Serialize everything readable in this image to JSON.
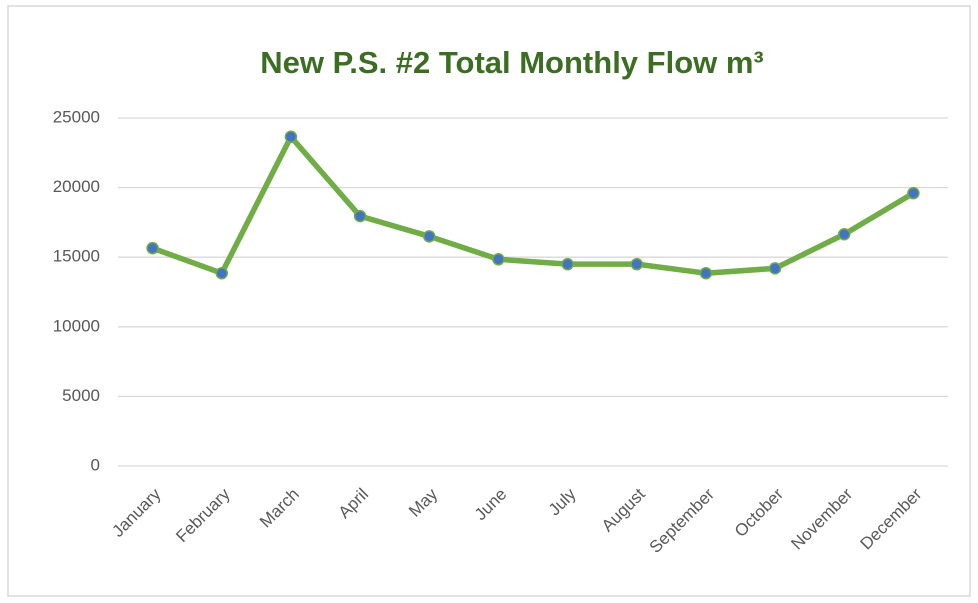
{
  "chart_data": {
    "type": "line",
    "title": "New P.S. #2 Total Monthly Flow m³",
    "categories": [
      "January",
      "February",
      "March",
      "April",
      "May",
      "June",
      "July",
      "August",
      "September",
      "October",
      "November",
      "December"
    ],
    "values": [
      15650,
      13850,
      23650,
      17950,
      16500,
      14850,
      14500,
      14500,
      13850,
      14200,
      16650,
      19600
    ],
    "color": "#70ad47",
    "marker_color": "#4472c4",
    "ylim": [
      0,
      25000
    ],
    "yticks": [
      0,
      5000,
      10000,
      15000,
      20000,
      25000
    ],
    "grid": true
  }
}
